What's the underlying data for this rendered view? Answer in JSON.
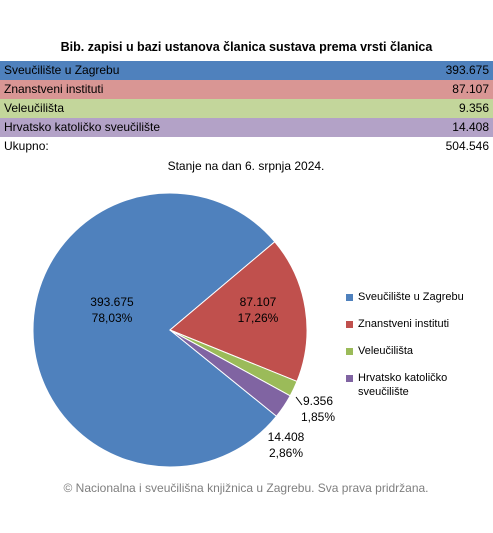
{
  "table": {
    "title": "Bib. zapisi u bazi ustanova članica sustava prema vrsti članica",
    "rows": [
      [
        "Sveučilište u Zagrebu",
        "393.675"
      ],
      [
        "Znanstveni instituti",
        "87.107"
      ],
      [
        "Veleučilišta",
        "9.356"
      ],
      [
        "Hrvatsko katoličko sveučilište",
        "14.408"
      ]
    ],
    "row_colors": [
      "#4f81bd",
      "#d99694",
      "#c3d69b",
      "#b3a2c7"
    ],
    "total": [
      "Ukupno:",
      "504.546"
    ]
  },
  "chart_data": {
    "type": "pie",
    "subtitle": "Stanje na dan 6. srpnja 2024.",
    "categories": [
      "Sveučilište u Zagrebu",
      "Znanstveni instituti",
      "Veleučilišta",
      "Hrvatsko katoličko sveučilište"
    ],
    "values": [
      393675,
      87107,
      9356,
      14408
    ],
    "value_labels": [
      "393.675",
      "87.107",
      "9.356",
      "14.408"
    ],
    "percent_labels": [
      "78,03%",
      "17,26%",
      "1,85%",
      "2,86%"
    ],
    "colors": [
      "#4f81bd",
      "#c0504d",
      "#9bbb59",
      "#8064a2"
    ],
    "legend": "right"
  },
  "footer": "© Nacionalna i sveučilišna knjižnica u Zagrebu. Sva prava pridržana."
}
